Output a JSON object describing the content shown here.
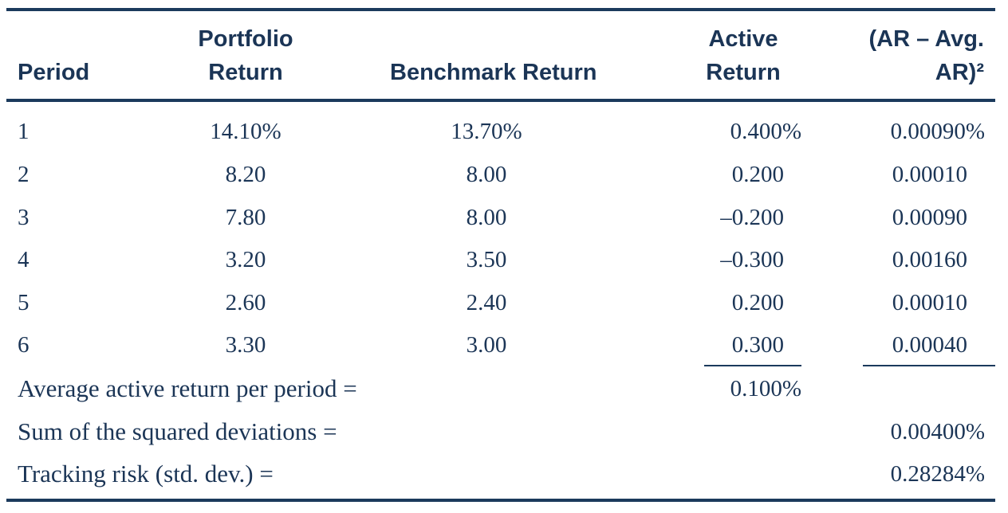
{
  "table": {
    "headers": {
      "period": "Period",
      "portfolio_line1": "Portfolio",
      "portfolio_line2": "Return",
      "benchmark": "Benchmark Return",
      "active_line1": "Active",
      "active_line2": "Return",
      "dev_line1": "(AR – Avg.",
      "dev_line2": "AR)²"
    },
    "rows": [
      {
        "period": "1",
        "portfolio": "14.10%",
        "benchmark": "13.70%",
        "active": "0.400%",
        "dev": "0.00090%"
      },
      {
        "period": "2",
        "portfolio": "8.20",
        "benchmark": "8.00",
        "active": "0.200",
        "dev": "0.00010"
      },
      {
        "period": "3",
        "portfolio": "7.80",
        "benchmark": "8.00",
        "active": "–0.200",
        "dev": "0.00090"
      },
      {
        "period": "4",
        "portfolio": "3.20",
        "benchmark": "3.50",
        "active": "–0.300",
        "dev": "0.00160"
      },
      {
        "period": "5",
        "portfolio": "2.60",
        "benchmark": "2.40",
        "active": "0.200",
        "dev": "0.00010"
      },
      {
        "period": "6",
        "portfolio": "3.30",
        "benchmark": "3.00",
        "active": "0.300",
        "dev": "0.00040"
      }
    ],
    "summary": {
      "avg_label": "Average active return per period =",
      "avg_value": "0.100%",
      "sum_label": "Sum of the squared deviations =",
      "sum_value": "0.00400%",
      "tracking_label": "Tracking risk (std. dev.) =",
      "tracking_value": "0.28284%"
    }
  }
}
